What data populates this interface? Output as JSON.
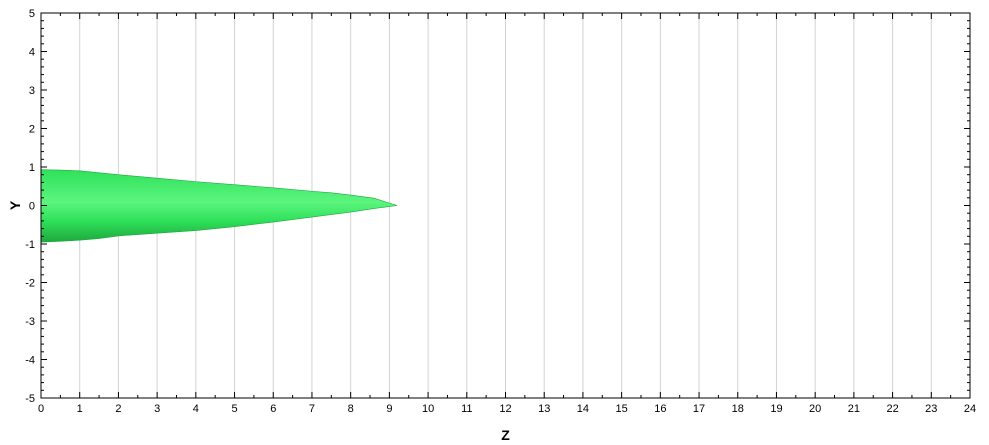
{
  "chart_data": {
    "type": "area",
    "title": "",
    "xlabel": "Z",
    "ylabel": "Y",
    "xlim": [
      0,
      24
    ],
    "ylim": [
      -5,
      5
    ],
    "x_ticks": [
      0,
      1,
      2,
      3,
      4,
      5,
      6,
      7,
      8,
      9,
      10,
      11,
      12,
      13,
      14,
      15,
      16,
      17,
      18,
      19,
      20,
      21,
      22,
      23,
      24
    ],
    "y_ticks": [
      -5,
      -4,
      -3,
      -2,
      -1,
      0,
      1,
      2,
      3,
      4,
      5
    ],
    "grid": {
      "vertical": true,
      "horizontal": false
    },
    "legend": "none",
    "colors": {
      "fill": "#2fe15a",
      "highlight": "#5cf57e",
      "shade": "#1ea83e",
      "grid": "#d2d2d2",
      "axis": "#000000"
    },
    "series": [
      {
        "upper": {
          "x": [
            0,
            0.5,
            1,
            2,
            3,
            4,
            5,
            6,
            7,
            7.5,
            8,
            8.6,
            9.2
          ],
          "y": [
            0.93,
            0.92,
            0.9,
            0.8,
            0.71,
            0.62,
            0.54,
            0.46,
            0.37,
            0.33,
            0.27,
            0.19,
            0
          ]
        },
        "lower": {
          "x": [
            0,
            0.5,
            1,
            1.5,
            2,
            3,
            4,
            5,
            6,
            7,
            8,
            8.6,
            9.2
          ],
          "y": [
            -0.95,
            -0.93,
            -0.9,
            -0.86,
            -0.79,
            -0.72,
            -0.65,
            -0.55,
            -0.43,
            -0.3,
            -0.17,
            -0.08,
            0
          ]
        }
      }
    ]
  }
}
